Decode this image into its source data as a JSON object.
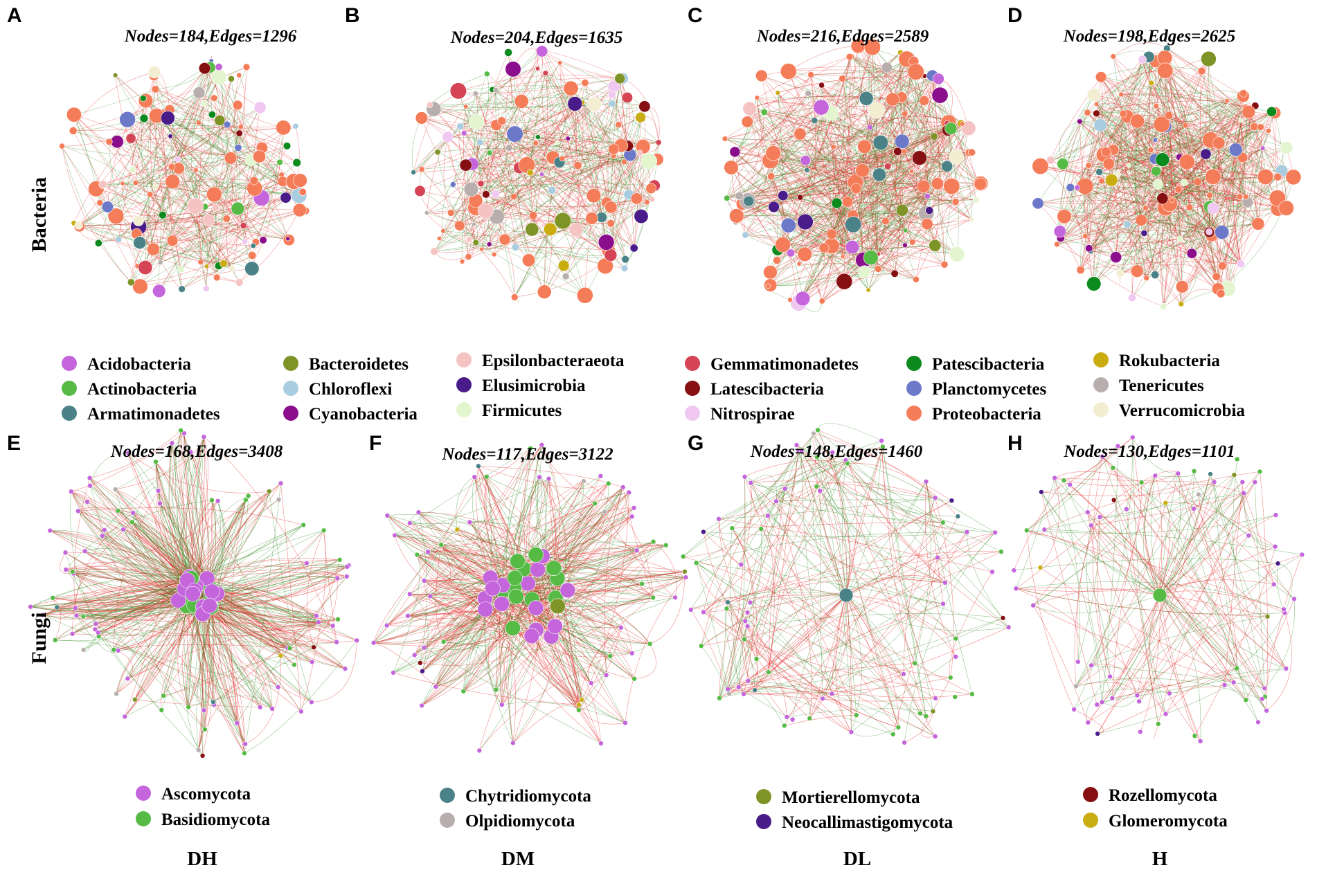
{
  "row_labels": [
    "Bacteria",
    "Fungi"
  ],
  "column_labels": [
    "DH",
    "DM",
    "DL",
    "H"
  ],
  "panels": [
    {
      "id": "A",
      "title": "Nodes=184,Edges=1296",
      "kind": "bacteria",
      "nodes": 184,
      "edges": 1296
    },
    {
      "id": "B",
      "title": "Nodes=204,Edges=1635",
      "kind": "bacteria",
      "nodes": 204,
      "edges": 1635
    },
    {
      "id": "C",
      "title": "Nodes=216,Edges=2589",
      "kind": "bacteria",
      "nodes": 216,
      "edges": 2589
    },
    {
      "id": "D",
      "title": "Nodes=198,Edges=2625",
      "kind": "bacteria",
      "nodes": 198,
      "edges": 2625
    },
    {
      "id": "E",
      "title": "Nodes=168,Edges=3408",
      "kind": "fungi",
      "nodes": 168,
      "edges": 3408
    },
    {
      "id": "F",
      "title": "Nodes=117,Edges=3122",
      "kind": "fungi",
      "nodes": 117,
      "edges": 3122
    },
    {
      "id": "G",
      "title": "Nodes=148,Edges=1460",
      "kind": "fungi",
      "nodes": 148,
      "edges": 1460
    },
    {
      "id": "H",
      "title": "Nodes=130,Edges=1101",
      "kind": "fungi",
      "nodes": 130,
      "edges": 1101
    }
  ],
  "bacteria_legend": [
    {
      "name": "Acidobacteria",
      "color": "#c465dc"
    },
    {
      "name": "Actinobacteria",
      "color": "#55bb44"
    },
    {
      "name": "Armatimonadetes",
      "color": "#4a8287"
    },
    {
      "name": "Bacteroidetes",
      "color": "#7f9427"
    },
    {
      "name": "Chloroflexi",
      "color": "#a8cce0"
    },
    {
      "name": "Cyanobacteria",
      "color": "#8b0f8c"
    },
    {
      "name": "Epsilonbacteraeota",
      "color": "#f6c3c3"
    },
    {
      "name": "Elusimicrobia",
      "color": "#4a1c8a"
    },
    {
      "name": "Firmicutes",
      "color": "#e3f5cf"
    },
    {
      "name": "Gemmatimonadetes",
      "color": "#d44455"
    },
    {
      "name": "Latescibacteria",
      "color": "#860f12"
    },
    {
      "name": "Nitrospirae",
      "color": "#f0c8f2"
    },
    {
      "name": "Patescibacteria",
      "color": "#0c8a1d"
    },
    {
      "name": "Planctomycetes",
      "color": "#6c78c8"
    },
    {
      "name": "Proteobacteria",
      "color": "#f57c58"
    },
    {
      "name": "Rokubacteria",
      "color": "#c9ad10"
    },
    {
      "name": "Tenericutes",
      "color": "#b9aeae"
    },
    {
      "name": "Verrucomicrobia",
      "color": "#f3eed2"
    }
  ],
  "fungi_legend": [
    {
      "name": "Ascomycota",
      "color": "#c465dc"
    },
    {
      "name": "Basidiomycota",
      "color": "#55bb44"
    },
    {
      "name": "Chytridiomycota",
      "color": "#4a8287"
    },
    {
      "name": "Olpidiomycota",
      "color": "#b9aeae"
    },
    {
      "name": "Mortierellomycota",
      "color": "#7f9427"
    },
    {
      "name": "Neocallimastigomycota",
      "color": "#4a1c8a"
    },
    {
      "name": "Rozellomycota",
      "color": "#860f12"
    },
    {
      "name": "Glomeromycota",
      "color": "#c9ad10"
    }
  ],
  "edge_colors": {
    "positive": "#e51c1c",
    "negative": "#2f8c1f"
  }
}
